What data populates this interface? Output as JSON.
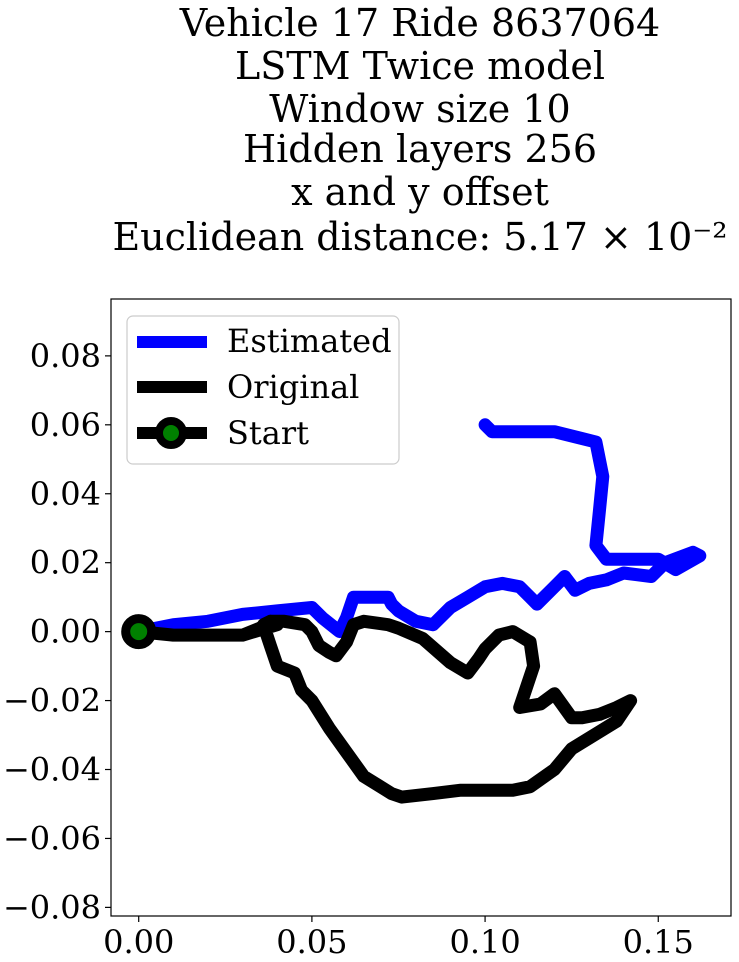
{
  "chart_data": {
    "type": "line",
    "title_lines": [
      "Vehicle 17 Ride 8637064",
      "LSTM Twice model",
      "Window size 10",
      "Hidden layers 256",
      "x and y offset",
      "Euclidean distance: 5.17 × 10⁻²"
    ],
    "xlabel": "",
    "ylabel": "",
    "xlim": [
      -0.008,
      0.171
    ],
    "ylim": [
      -0.0825,
      0.0965
    ],
    "x_ticks": [
      0.0,
      0.05,
      0.1,
      0.15
    ],
    "x_tick_labels": [
      "0.00",
      "0.05",
      "0.10",
      "0.15"
    ],
    "y_ticks": [
      -0.08,
      -0.06,
      -0.04,
      -0.02,
      0.0,
      0.02,
      0.04,
      0.06,
      0.08
    ],
    "y_tick_labels": [
      "−0.08",
      "−0.06",
      "−0.04",
      "−0.02",
      "0.00",
      "0.02",
      "0.04",
      "0.06",
      "0.08"
    ],
    "grid": false,
    "legend_position": "top-left",
    "legend": [
      {
        "label": "Estimated",
        "color": "#0000ff",
        "marker": "line"
      },
      {
        "label": "Original",
        "color": "#000000",
        "marker": "line"
      },
      {
        "label": "Start",
        "color": "#000000",
        "marker": "circle",
        "marker_face": "#008000"
      }
    ],
    "series": [
      {
        "name": "Estimated",
        "color": "#0000ff",
        "x": [
          0.0,
          0.01,
          0.02,
          0.03,
          0.04,
          0.05,
          0.053,
          0.058,
          0.06,
          0.062,
          0.067,
          0.072,
          0.073,
          0.075,
          0.08,
          0.085,
          0.09,
          0.095,
          0.1,
          0.105,
          0.11,
          0.113,
          0.115,
          0.12,
          0.123,
          0.126,
          0.13,
          0.135,
          0.14,
          0.148,
          0.152,
          0.16,
          0.162,
          0.155,
          0.15,
          0.14,
          0.135,
          0.132,
          0.133,
          0.134,
          0.132,
          0.128,
          0.12,
          0.11,
          0.102,
          0.1
        ],
        "y": [
          0.0,
          0.002,
          0.003,
          0.005,
          0.006,
          0.007,
          0.004,
          0.0,
          0.004,
          0.01,
          0.01,
          0.01,
          0.008,
          0.006,
          0.003,
          0.002,
          0.007,
          0.01,
          0.013,
          0.014,
          0.013,
          0.01,
          0.008,
          0.013,
          0.016,
          0.012,
          0.014,
          0.015,
          0.017,
          0.016,
          0.02,
          0.023,
          0.022,
          0.018,
          0.021,
          0.021,
          0.021,
          0.025,
          0.035,
          0.045,
          0.055,
          0.056,
          0.058,
          0.058,
          0.058,
          0.06
        ]
      },
      {
        "name": "Original",
        "color": "#000000",
        "x": [
          0.0,
          0.01,
          0.02,
          0.03,
          0.035,
          0.038,
          0.042,
          0.048,
          0.05,
          0.052,
          0.055,
          0.057,
          0.06,
          0.062,
          0.065,
          0.072,
          0.075,
          0.082,
          0.09,
          0.095,
          0.098,
          0.1,
          0.104,
          0.108,
          0.113,
          0.114,
          0.11,
          0.116,
          0.12,
          0.125,
          0.128,
          0.133,
          0.138,
          0.142,
          0.138,
          0.125,
          0.12,
          0.113,
          0.108,
          0.1,
          0.093,
          0.085,
          0.076,
          0.073,
          0.065,
          0.06,
          0.055,
          0.05,
          0.047,
          0.045,
          0.04,
          0.038,
          0.036,
          0.038,
          0.04,
          0.03,
          0.02,
          0.01,
          0.0
        ],
        "y": [
          0.0,
          -0.001,
          -0.001,
          -0.001,
          0.001,
          0.003,
          0.003,
          0.002,
          0.0,
          -0.004,
          -0.006,
          -0.007,
          -0.003,
          0.002,
          0.003,
          0.002,
          0.001,
          -0.002,
          -0.009,
          -0.012,
          -0.008,
          -0.005,
          -0.001,
          0.0,
          -0.003,
          -0.01,
          -0.022,
          -0.021,
          -0.018,
          -0.025,
          -0.025,
          -0.024,
          -0.022,
          -0.02,
          -0.026,
          -0.034,
          -0.04,
          -0.045,
          -0.046,
          -0.046,
          -0.046,
          -0.047,
          -0.048,
          -0.047,
          -0.042,
          -0.035,
          -0.028,
          -0.02,
          -0.017,
          -0.012,
          -0.01,
          -0.004,
          0.002,
          0.003,
          0.002,
          -0.001,
          -0.001,
          -0.001,
          0.0
        ]
      }
    ],
    "start_point": {
      "name": "Start",
      "x": 0.0,
      "y": 0.0,
      "edge_color": "#000000",
      "face_color": "#008000"
    }
  }
}
